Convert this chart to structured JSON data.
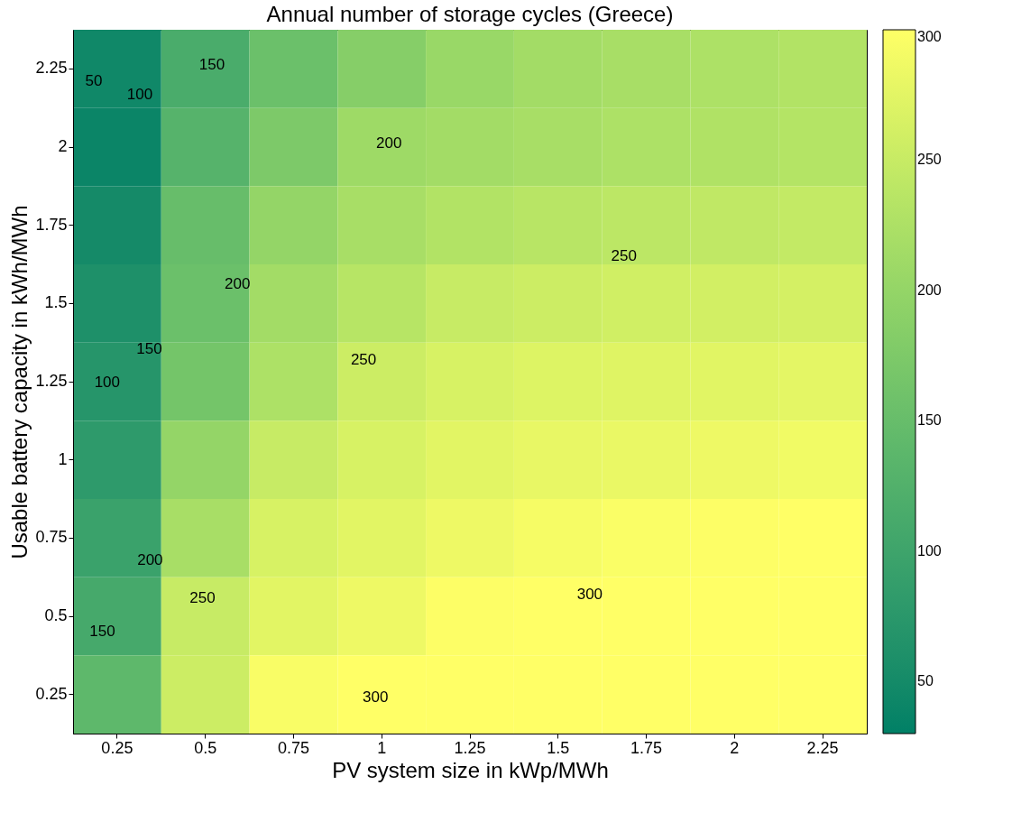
{
  "chart_data": {
    "type": "heatmap",
    "title": "Annual number of storage cycles (Greece)",
    "xlabel": "PV system size in kWp/MWh",
    "ylabel": "Usable battery capacity in kWh/MWh",
    "categories": [
      "0.25",
      "0.5",
      "0.75",
      "1",
      "1.25",
      "1.5",
      "1.75",
      "2",
      "2.25"
    ],
    "y_categories": [
      "2.25",
      "2",
      "1.75",
      "1.5",
      "1.25",
      "1",
      "0.75",
      "0.5",
      "0.25"
    ],
    "cells": [
      [
        45,
        115,
        155,
        185,
        205,
        215,
        220,
        225,
        230
      ],
      [
        40,
        130,
        175,
        210,
        215,
        220,
        225,
        228,
        232
      ],
      [
        50,
        150,
        200,
        220,
        230,
        236,
        240,
        243,
        246
      ],
      [
        60,
        155,
        215,
        235,
        250,
        255,
        258,
        260,
        262
      ],
      [
        70,
        165,
        225,
        255,
        265,
        270,
        272,
        274,
        276
      ],
      [
        80,
        200,
        250,
        265,
        275,
        280,
        282,
        285,
        288
      ],
      [
        95,
        220,
        265,
        275,
        285,
        292,
        296,
        298,
        300
      ],
      [
        110,
        250,
        275,
        285,
        298,
        300,
        300,
        300,
        300
      ],
      [
        140,
        255,
        295,
        300,
        300,
        300,
        300,
        300,
        300
      ]
    ],
    "clim": [
      30,
      300
    ],
    "cticks": [
      50,
      100,
      150,
      200,
      250,
      300
    ],
    "annotations": [
      "50",
      "100",
      "150",
      "200",
      "250",
      "300",
      "300",
      "100",
      "150",
      "200",
      "250",
      "200",
      "250",
      "150"
    ]
  }
}
